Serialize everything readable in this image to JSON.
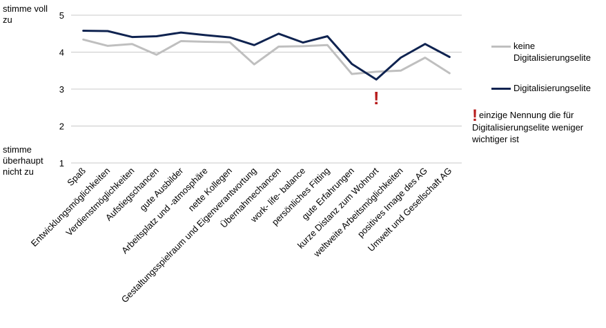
{
  "chart_data": {
    "type": "line",
    "ylim": [
      1,
      5
    ],
    "yticks": [
      1,
      2,
      3,
      4,
      5
    ],
    "grid": "horizontal",
    "y_top_label": "stimme voll zu",
    "y_bottom_label": "stimme überhaupt nicht zu",
    "categories": [
      "Spaß",
      "Entwicklungsmöglichkeiten",
      "Verdienstmöglichkeiten",
      "Aufstiegschancen",
      "gute Ausbilder",
      "Arbeitsplatz und -atmosphäre",
      "nette Kollegen",
      "Gestaltungsspielraum und Eigenverantwortung",
      "Übernahmechancen",
      "work- life- balance",
      "persönliches Fitting",
      "gute Erfahrungen",
      "kurze Distanz zum Wohnort",
      "weltweite Arbeitsmöglichkeiten",
      "positives Image des AG",
      "Umwelt und Gesellschaft AG"
    ],
    "series": [
      {
        "name": "keine Digitalisierungselite",
        "color": "#bfbfbf",
        "values": [
          4.34,
          4.17,
          4.22,
          3.93,
          4.3,
          4.28,
          4.27,
          3.67,
          4.15,
          4.16,
          4.19,
          3.41,
          3.47,
          3.5,
          3.85,
          3.43
        ]
      },
      {
        "name": "Digitalisierungselite",
        "color": "#0f2350",
        "values": [
          4.58,
          4.57,
          4.41,
          4.43,
          4.53,
          4.46,
          4.4,
          4.19,
          4.5,
          4.26,
          4.43,
          3.68,
          3.26,
          3.85,
          4.22,
          3.87
        ]
      }
    ],
    "legend": "right",
    "annotation": {
      "mark": "!",
      "category_index": 12,
      "text": "einzige Nennung die für Digitalisierungselite weniger wichtiger ist",
      "color": "#b71c1c"
    }
  }
}
